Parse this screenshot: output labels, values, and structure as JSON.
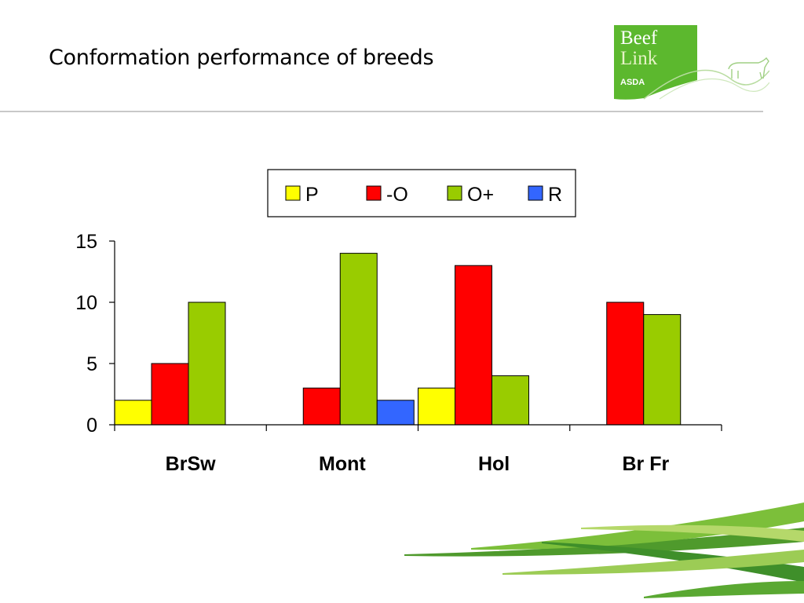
{
  "slide": {
    "title": "Conformation performance of breeds"
  },
  "logo": {
    "line1": "Beef",
    "line2": "Link",
    "sponsor": "ASDA",
    "colors": {
      "green": "#5cb82e",
      "light_green": "#a9d08e"
    }
  },
  "chart_data": {
    "type": "bar",
    "title": "",
    "xlabel": "",
    "ylabel": "",
    "ylim": [
      0,
      15
    ],
    "yticks": [
      0,
      5,
      10,
      15
    ],
    "categories": [
      "BrSw",
      "Mont",
      "Hol",
      "Br Fr"
    ],
    "legend_position": "top-center",
    "grid": false,
    "series": [
      {
        "name": "P",
        "color": "#ffff00",
        "values": [
          2,
          0,
          3,
          0
        ]
      },
      {
        "name": "-O",
        "color": "#ff0000",
        "values": [
          5,
          3,
          13,
          10
        ]
      },
      {
        "name": "O+",
        "color": "#99cc00",
        "values": [
          10,
          14,
          4,
          9
        ]
      },
      {
        "name": "R",
        "color": "#3366ff",
        "values": [
          0,
          2,
          0,
          0
        ]
      }
    ]
  }
}
